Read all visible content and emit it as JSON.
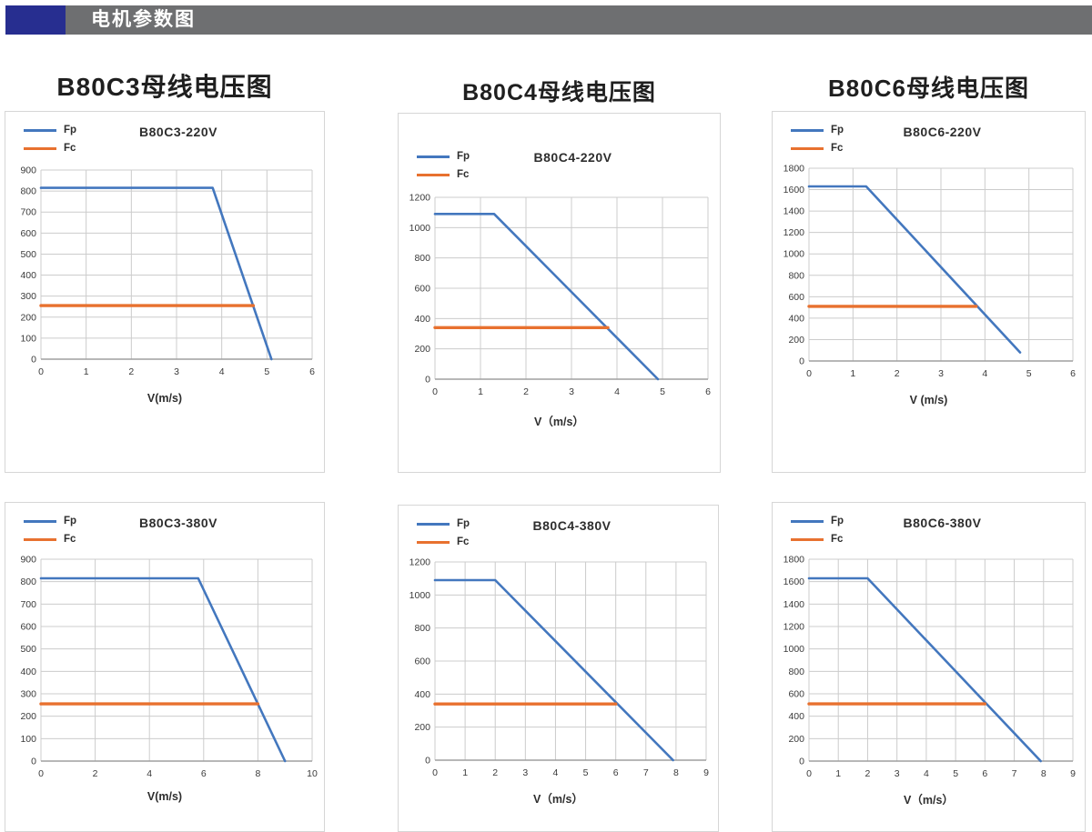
{
  "header": {
    "title": "电机参数图",
    "bar_color": "#6e6f71",
    "accent_color": "#272e90",
    "text_color": "#ffffff"
  },
  "section_titles": [
    {
      "label": "B80C3母线电压图"
    },
    {
      "label": "B80C4母线电压图"
    },
    {
      "label": "B80C6母线电压图"
    }
  ],
  "colors": {
    "fp": "#4377be",
    "fc": "#e8712f",
    "grid": "#cccccc",
    "axis": "#9f9f9f",
    "tick_text": "#3a3a3a",
    "panel_border": "#d6d6d6"
  },
  "chart_data": [
    {
      "type": "line",
      "title": "B80C3-220V",
      "xlabel": "V(m/s)",
      "legend": [
        "Fp",
        "Fc"
      ],
      "legend_position": "top-left",
      "grid": true,
      "xlim": [
        0,
        6
      ],
      "xstep": 1,
      "ylim": [
        0,
        900
      ],
      "ystep": 100,
      "series": [
        {
          "name": "Fp",
          "color": "#4377be",
          "width": 2.6,
          "points": [
            [
              0,
              815
            ],
            [
              3.8,
              815
            ],
            [
              5.1,
              0
            ]
          ]
        },
        {
          "name": "Fc",
          "color": "#e8712f",
          "width": 3.4,
          "points": [
            [
              0,
              255
            ],
            [
              4.7,
              255
            ]
          ]
        }
      ]
    },
    {
      "type": "line",
      "title": "B80C4-220V",
      "xlabel": "V（m/s）",
      "legend": [
        "Fp",
        "Fc"
      ],
      "legend_position": "top-left",
      "grid": true,
      "xlim": [
        0,
        6
      ],
      "xstep": 1,
      "ylim": [
        0,
        1200
      ],
      "ystep": 200,
      "series": [
        {
          "name": "Fp",
          "color": "#4377be",
          "width": 2.6,
          "points": [
            [
              0,
              1090
            ],
            [
              1.3,
              1090
            ],
            [
              4.9,
              0
            ]
          ]
        },
        {
          "name": "Fc",
          "color": "#e8712f",
          "width": 3.4,
          "points": [
            [
              0,
              340
            ],
            [
              3.8,
              340
            ]
          ]
        }
      ]
    },
    {
      "type": "line",
      "title": "B80C6-220V",
      "xlabel": "V (m/s)",
      "legend": [
        "Fp",
        "Fc"
      ],
      "legend_position": "top-left",
      "grid": true,
      "xlim": [
        0,
        6
      ],
      "xstep": 1,
      "ylim": [
        0,
        1800
      ],
      "ystep": 200,
      "series": [
        {
          "name": "Fp",
          "color": "#4377be",
          "width": 2.6,
          "points": [
            [
              0,
              1630
            ],
            [
              1.3,
              1630
            ],
            [
              4.8,
              80
            ]
          ]
        },
        {
          "name": "Fc",
          "color": "#e8712f",
          "width": 3.4,
          "points": [
            [
              0,
              510
            ],
            [
              3.8,
              510
            ]
          ]
        }
      ]
    },
    {
      "type": "line",
      "title": "B80C3-380V",
      "xlabel": "V(m/s)",
      "legend": [
        "Fp",
        "Fc"
      ],
      "legend_position": "top-left",
      "grid": true,
      "xlim": [
        0,
        10
      ],
      "xstep": 2,
      "ylim": [
        0,
        900
      ],
      "ystep": 100,
      "series": [
        {
          "name": "Fp",
          "color": "#4377be",
          "width": 2.6,
          "points": [
            [
              0,
              815
            ],
            [
              5.8,
              815
            ],
            [
              9,
              0
            ]
          ]
        },
        {
          "name": "Fc",
          "color": "#e8712f",
          "width": 3.4,
          "points": [
            [
              0,
              255
            ],
            [
              8,
              255
            ]
          ]
        }
      ]
    },
    {
      "type": "line",
      "title": "B80C4-380V",
      "xlabel": "V（m/s）",
      "legend": [
        "Fp",
        "Fc"
      ],
      "legend_position": "top-left",
      "grid": true,
      "xlim": [
        0,
        9
      ],
      "xstep": 1,
      "ylim": [
        0,
        1200
      ],
      "ystep": 200,
      "series": [
        {
          "name": "Fp",
          "color": "#4377be",
          "width": 2.6,
          "points": [
            [
              0,
              1090
            ],
            [
              2,
              1090
            ],
            [
              7.9,
              0
            ]
          ]
        },
        {
          "name": "Fc",
          "color": "#e8712f",
          "width": 3.4,
          "points": [
            [
              0,
              340
            ],
            [
              6,
              340
            ]
          ]
        }
      ]
    },
    {
      "type": "line",
      "title": "B80C6-380V",
      "xlabel": "V（m/s）",
      "legend": [
        "Fp",
        "Fc"
      ],
      "legend_position": "top-left",
      "grid": true,
      "xlim": [
        0,
        9
      ],
      "xstep": 1,
      "ylim": [
        0,
        1800
      ],
      "ystep": 200,
      "series": [
        {
          "name": "Fp",
          "color": "#4377be",
          "width": 2.6,
          "points": [
            [
              0,
              1630
            ],
            [
              2,
              1630
            ],
            [
              7.9,
              0
            ]
          ]
        },
        {
          "name": "Fc",
          "color": "#e8712f",
          "width": 3.4,
          "points": [
            [
              0,
              510
            ],
            [
              6,
              510
            ]
          ]
        }
      ]
    }
  ]
}
